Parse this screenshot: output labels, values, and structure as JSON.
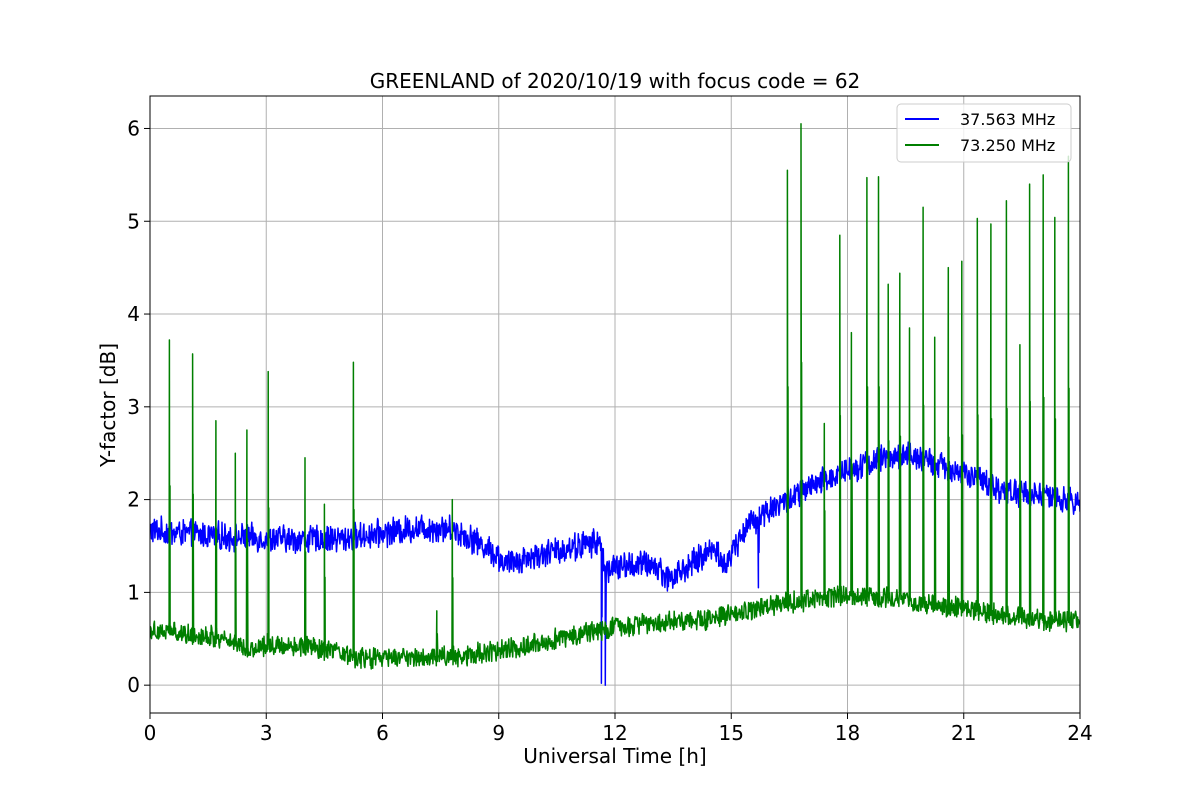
{
  "chart_data": {
    "type": "line",
    "title": "GREENLAND of 2020/10/19 with focus code = 62",
    "xlabel": "Universal Time [h]",
    "ylabel": "Y-factor [dB]",
    "xlim": [
      0,
      24
    ],
    "ylim": [
      -0.3,
      6.35
    ],
    "x_ticks": [
      0,
      3,
      6,
      9,
      12,
      15,
      18,
      21,
      24
    ],
    "y_ticks": [
      0,
      1,
      2,
      3,
      4,
      5,
      6
    ],
    "grid": true,
    "legend_position": "top-right",
    "series": [
      {
        "name": "37.563 MHz",
        "color": "#0000ff",
        "noise_amplitude": 0.13,
        "baseline": [
          [
            0,
            1.67
          ],
          [
            1,
            1.63
          ],
          [
            2,
            1.6
          ],
          [
            3,
            1.58
          ],
          [
            4,
            1.57
          ],
          [
            5,
            1.58
          ],
          [
            6,
            1.64
          ],
          [
            7,
            1.7
          ],
          [
            7.8,
            1.68
          ],
          [
            8.3,
            1.58
          ],
          [
            8.8,
            1.45
          ],
          [
            9.2,
            1.3
          ],
          [
            9.6,
            1.36
          ],
          [
            10.5,
            1.45
          ],
          [
            11.6,
            1.55
          ],
          [
            11.75,
            1.25
          ],
          [
            12.5,
            1.3
          ],
          [
            13,
            1.3
          ],
          [
            13.4,
            1.15
          ],
          [
            13.8,
            1.25
          ],
          [
            14.3,
            1.4
          ],
          [
            14.6,
            1.5
          ],
          [
            14.8,
            1.25
          ],
          [
            15.1,
            1.5
          ],
          [
            15.4,
            1.72
          ],
          [
            16,
            1.9
          ],
          [
            17,
            2.12
          ],
          [
            18,
            2.33
          ],
          [
            19,
            2.45
          ],
          [
            19.5,
            2.48
          ],
          [
            20,
            2.42
          ],
          [
            21,
            2.28
          ],
          [
            22,
            2.1
          ],
          [
            23,
            2.05
          ],
          [
            24,
            1.95
          ]
        ],
        "drops": [
          [
            11.65,
            0.02
          ],
          [
            11.75,
            0.0
          ],
          [
            15.7,
            1.05
          ]
        ]
      },
      {
        "name": "73.250 MHz",
        "color": "#007f00",
        "noise_amplitude": 0.1,
        "baseline": [
          [
            0,
            0.6
          ],
          [
            1,
            0.55
          ],
          [
            2,
            0.5
          ],
          [
            2.6,
            0.38
          ],
          [
            3,
            0.44
          ],
          [
            4,
            0.42
          ],
          [
            5,
            0.33
          ],
          [
            5.5,
            0.28
          ],
          [
            6,
            0.3
          ],
          [
            7,
            0.3
          ],
          [
            8,
            0.32
          ],
          [
            9,
            0.37
          ],
          [
            10,
            0.45
          ],
          [
            11,
            0.55
          ],
          [
            12,
            0.62
          ],
          [
            13,
            0.68
          ],
          [
            14,
            0.7
          ],
          [
            15,
            0.75
          ],
          [
            16,
            0.85
          ],
          [
            17,
            0.92
          ],
          [
            18,
            0.97
          ],
          [
            19,
            0.95
          ],
          [
            20,
            0.88
          ],
          [
            21,
            0.82
          ],
          [
            22,
            0.75
          ],
          [
            23,
            0.7
          ],
          [
            24,
            0.7
          ]
        ],
        "spikes": [
          [
            0.5,
            3.72
          ],
          [
            1.1,
            3.57
          ],
          [
            1.7,
            2.85
          ],
          [
            2.2,
            2.5
          ],
          [
            2.5,
            2.75
          ],
          [
            3.05,
            3.38
          ],
          [
            4.0,
            2.45
          ],
          [
            4.5,
            1.95
          ],
          [
            5.25,
            3.48
          ],
          [
            7.4,
            0.8
          ],
          [
            7.8,
            2.0
          ],
          [
            16.45,
            5.55
          ],
          [
            16.8,
            6.05
          ],
          [
            17.4,
            2.82
          ],
          [
            17.8,
            4.85
          ],
          [
            18.1,
            3.8
          ],
          [
            18.5,
            5.47
          ],
          [
            18.8,
            5.48
          ],
          [
            19.05,
            4.32
          ],
          [
            19.35,
            4.44
          ],
          [
            19.6,
            3.85
          ],
          [
            19.95,
            5.15
          ],
          [
            20.25,
            3.75
          ],
          [
            20.6,
            4.5
          ],
          [
            20.95,
            4.57
          ],
          [
            21.35,
            5.03
          ],
          [
            21.7,
            4.97
          ],
          [
            22.1,
            5.22
          ],
          [
            22.45,
            3.67
          ],
          [
            22.7,
            5.4
          ],
          [
            23.05,
            5.5
          ],
          [
            23.35,
            5.04
          ],
          [
            23.7,
            5.7
          ]
        ]
      }
    ]
  }
}
